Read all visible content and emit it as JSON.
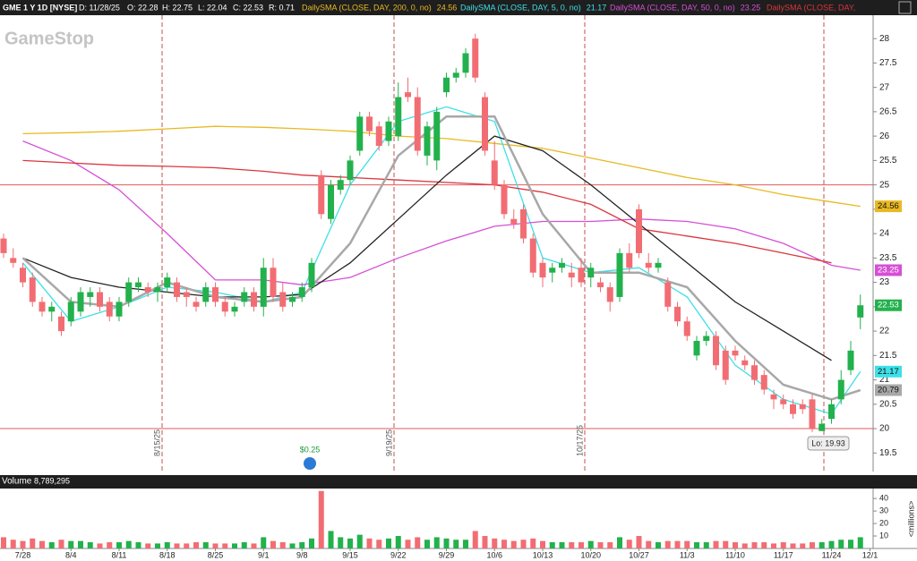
{
  "chart_data": {
    "type": "candlestick",
    "header": {
      "symbol": "GME 1 Y 1D [NYSE]",
      "date": "D: 11/28/25",
      "open": "O: 22.28",
      "high": "H: 22.75",
      "low": "L: 22.04",
      "close": "C: 22.53",
      "range": "R: 0.71"
    },
    "watermark": "GameStop",
    "categories": [
      null,
      null,
      "7/28",
      null,
      null,
      null,
      null,
      "8/4",
      null,
      null,
      null,
      null,
      "8/11",
      null,
      null,
      null,
      null,
      "8/18",
      null,
      null,
      null,
      null,
      "8/25",
      null,
      null,
      null,
      null,
      "9/1",
      null,
      null,
      null,
      "9/8",
      null,
      null,
      null,
      null,
      "9/15",
      null,
      null,
      null,
      null,
      "9/22",
      null,
      null,
      null,
      null,
      "9/29",
      null,
      null,
      null,
      null,
      "10/6",
      null,
      null,
      null,
      null,
      "10/13",
      null,
      null,
      null,
      null,
      "10/20",
      null,
      null,
      null,
      null,
      "10/27",
      null,
      null,
      null,
      null,
      "11/3",
      null,
      null,
      null,
      null,
      "11/10",
      null,
      null,
      null,
      null,
      "11/17",
      null,
      null,
      null,
      null,
      "11/24",
      null,
      null,
      null,
      "12/1"
    ],
    "open": [
      23.9,
      23.5,
      23.3,
      23.1,
      22.6,
      22.4,
      22.3,
      22.2,
      22.4,
      22.7,
      22.8,
      22.6,
      22.3,
      22.6,
      22.9,
      22.9,
      22.8,
      22.9,
      23.0,
      22.8,
      22.6,
      22.6,
      22.9,
      22.6,
      22.4,
      22.6,
      22.8,
      22.5,
      23.3,
      22.8,
      22.6,
      22.7,
      22.9,
      25.2,
      24.3,
      24.9,
      25.1,
      25.7,
      26.4,
      26.2,
      25.9,
      26.0,
      26.9,
      26.8,
      25.6,
      25.5,
      26.9,
      27.2,
      27.3,
      28.0,
      26.8,
      25.5,
      25.0,
      24.3,
      24.5,
      23.9,
      23.4,
      23.2,
      23.3,
      23.2,
      23.3,
      23.1,
      23.0,
      22.9,
      22.7,
      23.6,
      24.5,
      23.4,
      23.3,
      23.0,
      22.5,
      22.2,
      21.5,
      21.8,
      21.9,
      21.6,
      21.6,
      21.4,
      21.3,
      21.1,
      20.7,
      20.6,
      20.5,
      20.5,
      20.6,
      19.95,
      20.2,
      20.6,
      21.2,
      22.28,
      null
    ],
    "high": [
      24.0,
      23.7,
      23.4,
      23.2,
      22.7,
      22.6,
      22.4,
      22.7,
      22.9,
      22.9,
      22.9,
      22.7,
      22.7,
      23.1,
      23.1,
      23.0,
      23.0,
      23.2,
      23.1,
      22.9,
      22.7,
      23.0,
      23.0,
      22.7,
      22.6,
      22.9,
      22.9,
      23.5,
      23.5,
      23.0,
      22.8,
      23.0,
      23.5,
      25.3,
      25.1,
      25.2,
      25.6,
      26.5,
      26.5,
      26.3,
      26.4,
      27.1,
      27.2,
      27.0,
      26.3,
      26.6,
      27.3,
      27.4,
      27.8,
      28.1,
      26.9,
      25.9,
      25.1,
      24.5,
      24.6,
      24.0,
      23.5,
      23.4,
      23.5,
      23.4,
      23.5,
      23.4,
      23.1,
      23.0,
      23.7,
      23.8,
      24.6,
      23.6,
      23.5,
      23.1,
      22.6,
      22.3,
      21.9,
      22.0,
      22.0,
      21.7,
      21.7,
      21.5,
      21.4,
      21.2,
      20.8,
      20.7,
      20.6,
      20.6,
      20.7,
      20.2,
      20.6,
      21.2,
      21.8,
      22.75,
      null
    ],
    "low": [
      23.5,
      23.3,
      22.9,
      22.5,
      22.3,
      22.2,
      21.9,
      22.1,
      22.3,
      22.5,
      22.4,
      22.2,
      22.2,
      22.5,
      22.8,
      22.7,
      22.6,
      22.8,
      22.6,
      22.5,
      22.4,
      22.5,
      22.5,
      22.3,
      22.3,
      22.5,
      22.4,
      22.3,
      22.6,
      22.4,
      22.5,
      22.6,
      22.8,
      24.3,
      24.2,
      24.8,
      25.0,
      25.6,
      26.0,
      25.7,
      25.8,
      25.9,
      26.7,
      25.6,
      25.4,
      25.3,
      26.8,
      27.1,
      27.2,
      27.1,
      25.6,
      24.9,
      24.3,
      24.1,
      23.8,
      23.1,
      22.9,
      23.0,
      23.2,
      22.9,
      22.9,
      22.9,
      22.8,
      22.4,
      22.6,
      23.2,
      23.5,
      23.2,
      23.2,
      22.4,
      22.1,
      21.8,
      21.4,
      21.7,
      21.2,
      20.9,
      21.4,
      21.2,
      20.9,
      20.7,
      20.4,
      20.4,
      20.2,
      20.3,
      19.93,
      19.95,
      20.1,
      20.5,
      21.1,
      22.04,
      null
    ],
    "close": [
      23.6,
      23.4,
      23.0,
      22.6,
      22.4,
      22.5,
      22.0,
      22.6,
      22.8,
      22.8,
      22.5,
      22.3,
      22.6,
      23.0,
      23.0,
      22.8,
      22.9,
      23.1,
      22.7,
      22.7,
      22.5,
      22.9,
      22.6,
      22.4,
      22.5,
      22.8,
      22.5,
      23.3,
      22.7,
      22.5,
      22.7,
      22.9,
      23.4,
      24.4,
      25.0,
      25.1,
      25.5,
      26.4,
      26.1,
      25.8,
      26.3,
      26.8,
      26.8,
      25.7,
      26.2,
      26.5,
      27.2,
      27.3,
      27.7,
      27.2,
      25.7,
      25.0,
      24.4,
      24.2,
      23.9,
      23.2,
      23.1,
      23.3,
      23.4,
      23.1,
      23.0,
      23.3,
      22.9,
      22.6,
      23.6,
      23.3,
      23.6,
      23.3,
      23.4,
      22.5,
      22.2,
      21.9,
      21.8,
      21.9,
      21.3,
      21.0,
      21.5,
      21.3,
      21.0,
      20.8,
      20.6,
      20.5,
      20.3,
      20.4,
      20.0,
      20.1,
      20.5,
      21.0,
      21.6,
      22.53,
      null
    ],
    "up_color": "#22b14c",
    "down_color": "#f26d73",
    "ylim": [
      19.12,
      28.48
    ],
    "yticks": [
      19.5,
      20,
      20.5,
      21,
      21.5,
      22,
      22.5,
      23,
      23.5,
      24,
      24.5,
      25,
      25.5,
      26,
      26.5,
      27,
      27.5,
      28
    ],
    "reference_lines": [
      25,
      20
    ],
    "reference_color": "#e05a5a",
    "sma": [
      {
        "name": "DailySMA (CLOSE, DAY, 200, 0, no)",
        "color": "#e8b923",
        "x": [
          "7/28",
          "8/4",
          "8/11",
          "8/18",
          "8/25",
          "9/1",
          "9/8",
          "9/15",
          "9/22",
          "9/29",
          "10/6",
          "10/13",
          "10/20",
          "10/27",
          "11/3",
          "11/10",
          "11/17",
          "11/24"
        ],
        "values": [
          26.05,
          26.07,
          26.1,
          26.15,
          26.2,
          26.18,
          26.15,
          26.1,
          26.0,
          25.95,
          25.85,
          25.75,
          25.55,
          25.35,
          25.15,
          25.0,
          24.8,
          24.65
        ],
        "last": 24.56
      },
      {
        "name": "DailySMA (CLOSE, DAY, 5, 0, no)",
        "color": "#3ee0e8",
        "x": [
          "7/28",
          "8/4",
          "8/11",
          "8/18",
          "8/25",
          "9/1",
          "9/8",
          "9/15",
          "9/22",
          "9/29",
          "10/6",
          "10/13",
          "10/20",
          "10/27",
          "11/3",
          "11/10",
          "11/17",
          "11/24"
        ],
        "values": [
          23.4,
          22.2,
          22.5,
          22.9,
          22.8,
          22.6,
          22.8,
          25.0,
          26.3,
          26.6,
          26.3,
          23.5,
          23.2,
          23.3,
          22.7,
          21.3,
          20.6,
          20.3
        ],
        "last": 21.17
      },
      {
        "name": "DailySMA (CLOSE, DAY, 50, 0, no)",
        "color": "#d64fd6",
        "x": [
          "7/28",
          "8/4",
          "8/11",
          "8/18",
          "8/25",
          "9/1",
          "9/8",
          "9/15",
          "9/22",
          "9/29",
          "10/6",
          "10/13",
          "10/20",
          "10/27",
          "11/3",
          "11/10",
          "11/17",
          "11/24"
        ],
        "values": [
          25.9,
          25.5,
          24.9,
          24.0,
          23.05,
          23.05,
          22.95,
          23.1,
          23.5,
          23.85,
          24.15,
          24.25,
          24.25,
          24.3,
          24.25,
          24.1,
          23.8,
          23.35
        ],
        "last": 23.25
      },
      {
        "name": "DailySMA (CLOSE, DAY,",
        "color": "#d9363e",
        "x": [
          "7/28",
          "8/4",
          "8/11",
          "8/18",
          "8/25",
          "9/1",
          "9/8",
          "9/15",
          "9/22",
          "9/29",
          "10/6",
          "10/13",
          "10/20",
          "10/27",
          "11/3",
          "11/10",
          "11/17",
          "11/24"
        ],
        "values": [
          25.5,
          25.45,
          25.4,
          25.38,
          25.35,
          25.28,
          25.2,
          25.15,
          25.1,
          25.05,
          25.0,
          24.85,
          24.6,
          24.1,
          23.95,
          23.8,
          23.6,
          23.4
        ]
      },
      {
        "color": "#222222",
        "x": [
          "7/28",
          "8/4",
          "8/11",
          "8/18",
          "8/25",
          "9/1",
          "9/8",
          "9/15",
          "9/22",
          "9/29",
          "10/6",
          "10/13",
          "10/20",
          "10/27",
          "11/3",
          "11/10",
          "11/17",
          "11/24"
        ],
        "values": [
          23.5,
          23.1,
          22.9,
          22.8,
          22.7,
          22.7,
          22.75,
          23.4,
          24.3,
          25.2,
          26.0,
          25.7,
          25.0,
          24.2,
          23.4,
          22.6,
          22.0,
          21.4
        ]
      },
      {
        "color": "#a8a8a8",
        "x": [
          "7/28",
          "8/4",
          "8/11",
          "8/18",
          "8/25",
          "9/1",
          "9/8",
          "9/15",
          "9/22",
          "9/29",
          "10/6",
          "10/13",
          "10/20",
          "10/27",
          "11/3",
          "11/10",
          "11/17",
          "11/24"
        ],
        "values": [
          23.5,
          22.6,
          22.5,
          23.0,
          22.7,
          22.6,
          22.7,
          23.8,
          25.6,
          26.4,
          26.4,
          24.4,
          23.2,
          23.2,
          22.9,
          21.8,
          20.9,
          20.6
        ],
        "last": 20.79
      }
    ],
    "events": [
      {
        "label": "8/15/25"
      },
      {
        "label": "9/19/25"
      },
      {
        "label": "10/17/25"
      }
    ],
    "dividend": "$0.25",
    "low_label": "Lo: 19.93",
    "volume": {
      "title": "Volume",
      "total": "8,789,295",
      "unit_label": "<millions>",
      "values": [
        9,
        7,
        6,
        8,
        6,
        5,
        7,
        6,
        6,
        5,
        4,
        5,
        5,
        6,
        5,
        4,
        4,
        5,
        4,
        4,
        5,
        5,
        4,
        4,
        4,
        5,
        4,
        9,
        6,
        5,
        4,
        5,
        8,
        46,
        14,
        9,
        8,
        11,
        8,
        7,
        8,
        10,
        7,
        9,
        7,
        9,
        8,
        7,
        7,
        14,
        10,
        8,
        7,
        6,
        7,
        8,
        6,
        5,
        5,
        5,
        5,
        6,
        5,
        5,
        9,
        7,
        10,
        6,
        5,
        6,
        6,
        6,
        5,
        5,
        6,
        6,
        5,
        4,
        5,
        5,
        4,
        5,
        4,
        4,
        5,
        5,
        6,
        7,
        7,
        9,
        null
      ],
      "ylim": [
        0,
        48
      ],
      "yticks": [
        10,
        20,
        30,
        40
      ]
    }
  }
}
